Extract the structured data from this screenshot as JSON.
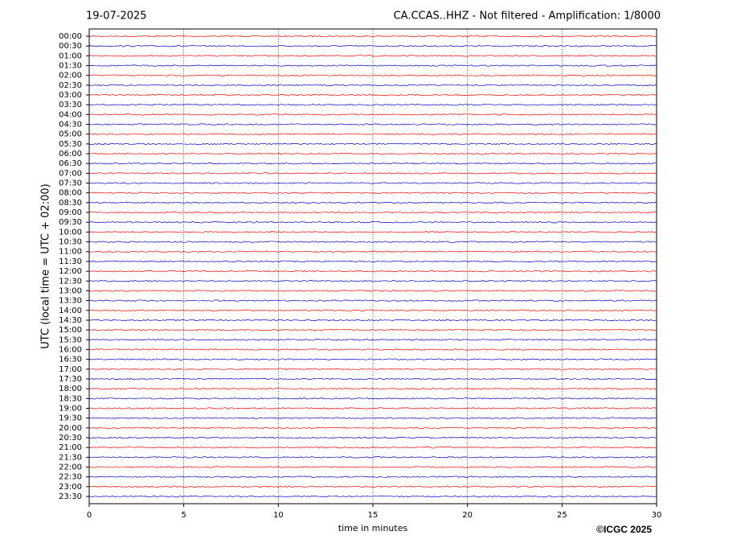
{
  "chart_data": {
    "type": "helicorder",
    "title_left": "19-07-2025",
    "title": "CA.CCAS..HHZ - Not filtered - Amplification: 1/8000",
    "y_label": "UTC (local time = UTC + 02:00)",
    "x_label": "time in minutes",
    "copyright": "©ICGC 2025",
    "categories": [
      "00:00",
      "00:30",
      "01:00",
      "01:30",
      "02:00",
      "02:30",
      "03:00",
      "03:30",
      "04:00",
      "04:30",
      "05:00",
      "05:30",
      "06:00",
      "06:30",
      "07:00",
      "07:30",
      "08:00",
      "08:30",
      "09:00",
      "09:30",
      "10:00",
      "10:30",
      "11:00",
      "11:30",
      "12:00",
      "12:30",
      "13:00",
      "13:30",
      "14:00",
      "14:30",
      "15:00",
      "15:30",
      "16:00",
      "16:30",
      "17:00",
      "17:30",
      "18:00",
      "18:30",
      "19:00",
      "19:30",
      "20:00",
      "20:30",
      "21:00",
      "21:30",
      "22:00",
      "22:30",
      "23:00",
      "23:30"
    ],
    "colors": [
      "#ff0000",
      "#0000cc"
    ],
    "xlim": [
      0,
      30
    ],
    "xticks": [
      0,
      5,
      10,
      15,
      20,
      25,
      30
    ],
    "grid": true
  }
}
